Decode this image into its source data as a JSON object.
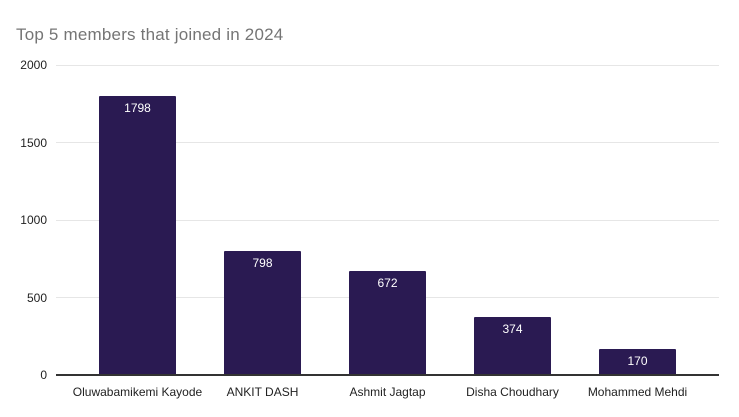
{
  "colors": {
    "bar": "#2a1a52",
    "title_text": "#757575",
    "axis_text": "#222222",
    "value_label_text": "#ffffff",
    "gridline": "#e6e6e6",
    "baseline": "#333333",
    "background": "#ffffff"
  },
  "chart_data": {
    "type": "bar",
    "title": "Top 5 members that joined in 2024",
    "categories": [
      "Oluwabamikemi Kayode",
      "ANKIT DASH",
      "Ashmit Jagtap",
      "Disha Choudhary",
      "Mohammed Mehdi"
    ],
    "values": [
      1798,
      798,
      672,
      374,
      170
    ],
    "value_labels": [
      "1798",
      "798",
      "672",
      "374",
      "170"
    ],
    "xlabel": "",
    "ylabel": "",
    "y_ticks": [
      0,
      500,
      1000,
      1500,
      2000
    ],
    "ylim": [
      0,
      2000
    ],
    "grid": true,
    "legend": "none",
    "value_label_position": "inside-top"
  }
}
